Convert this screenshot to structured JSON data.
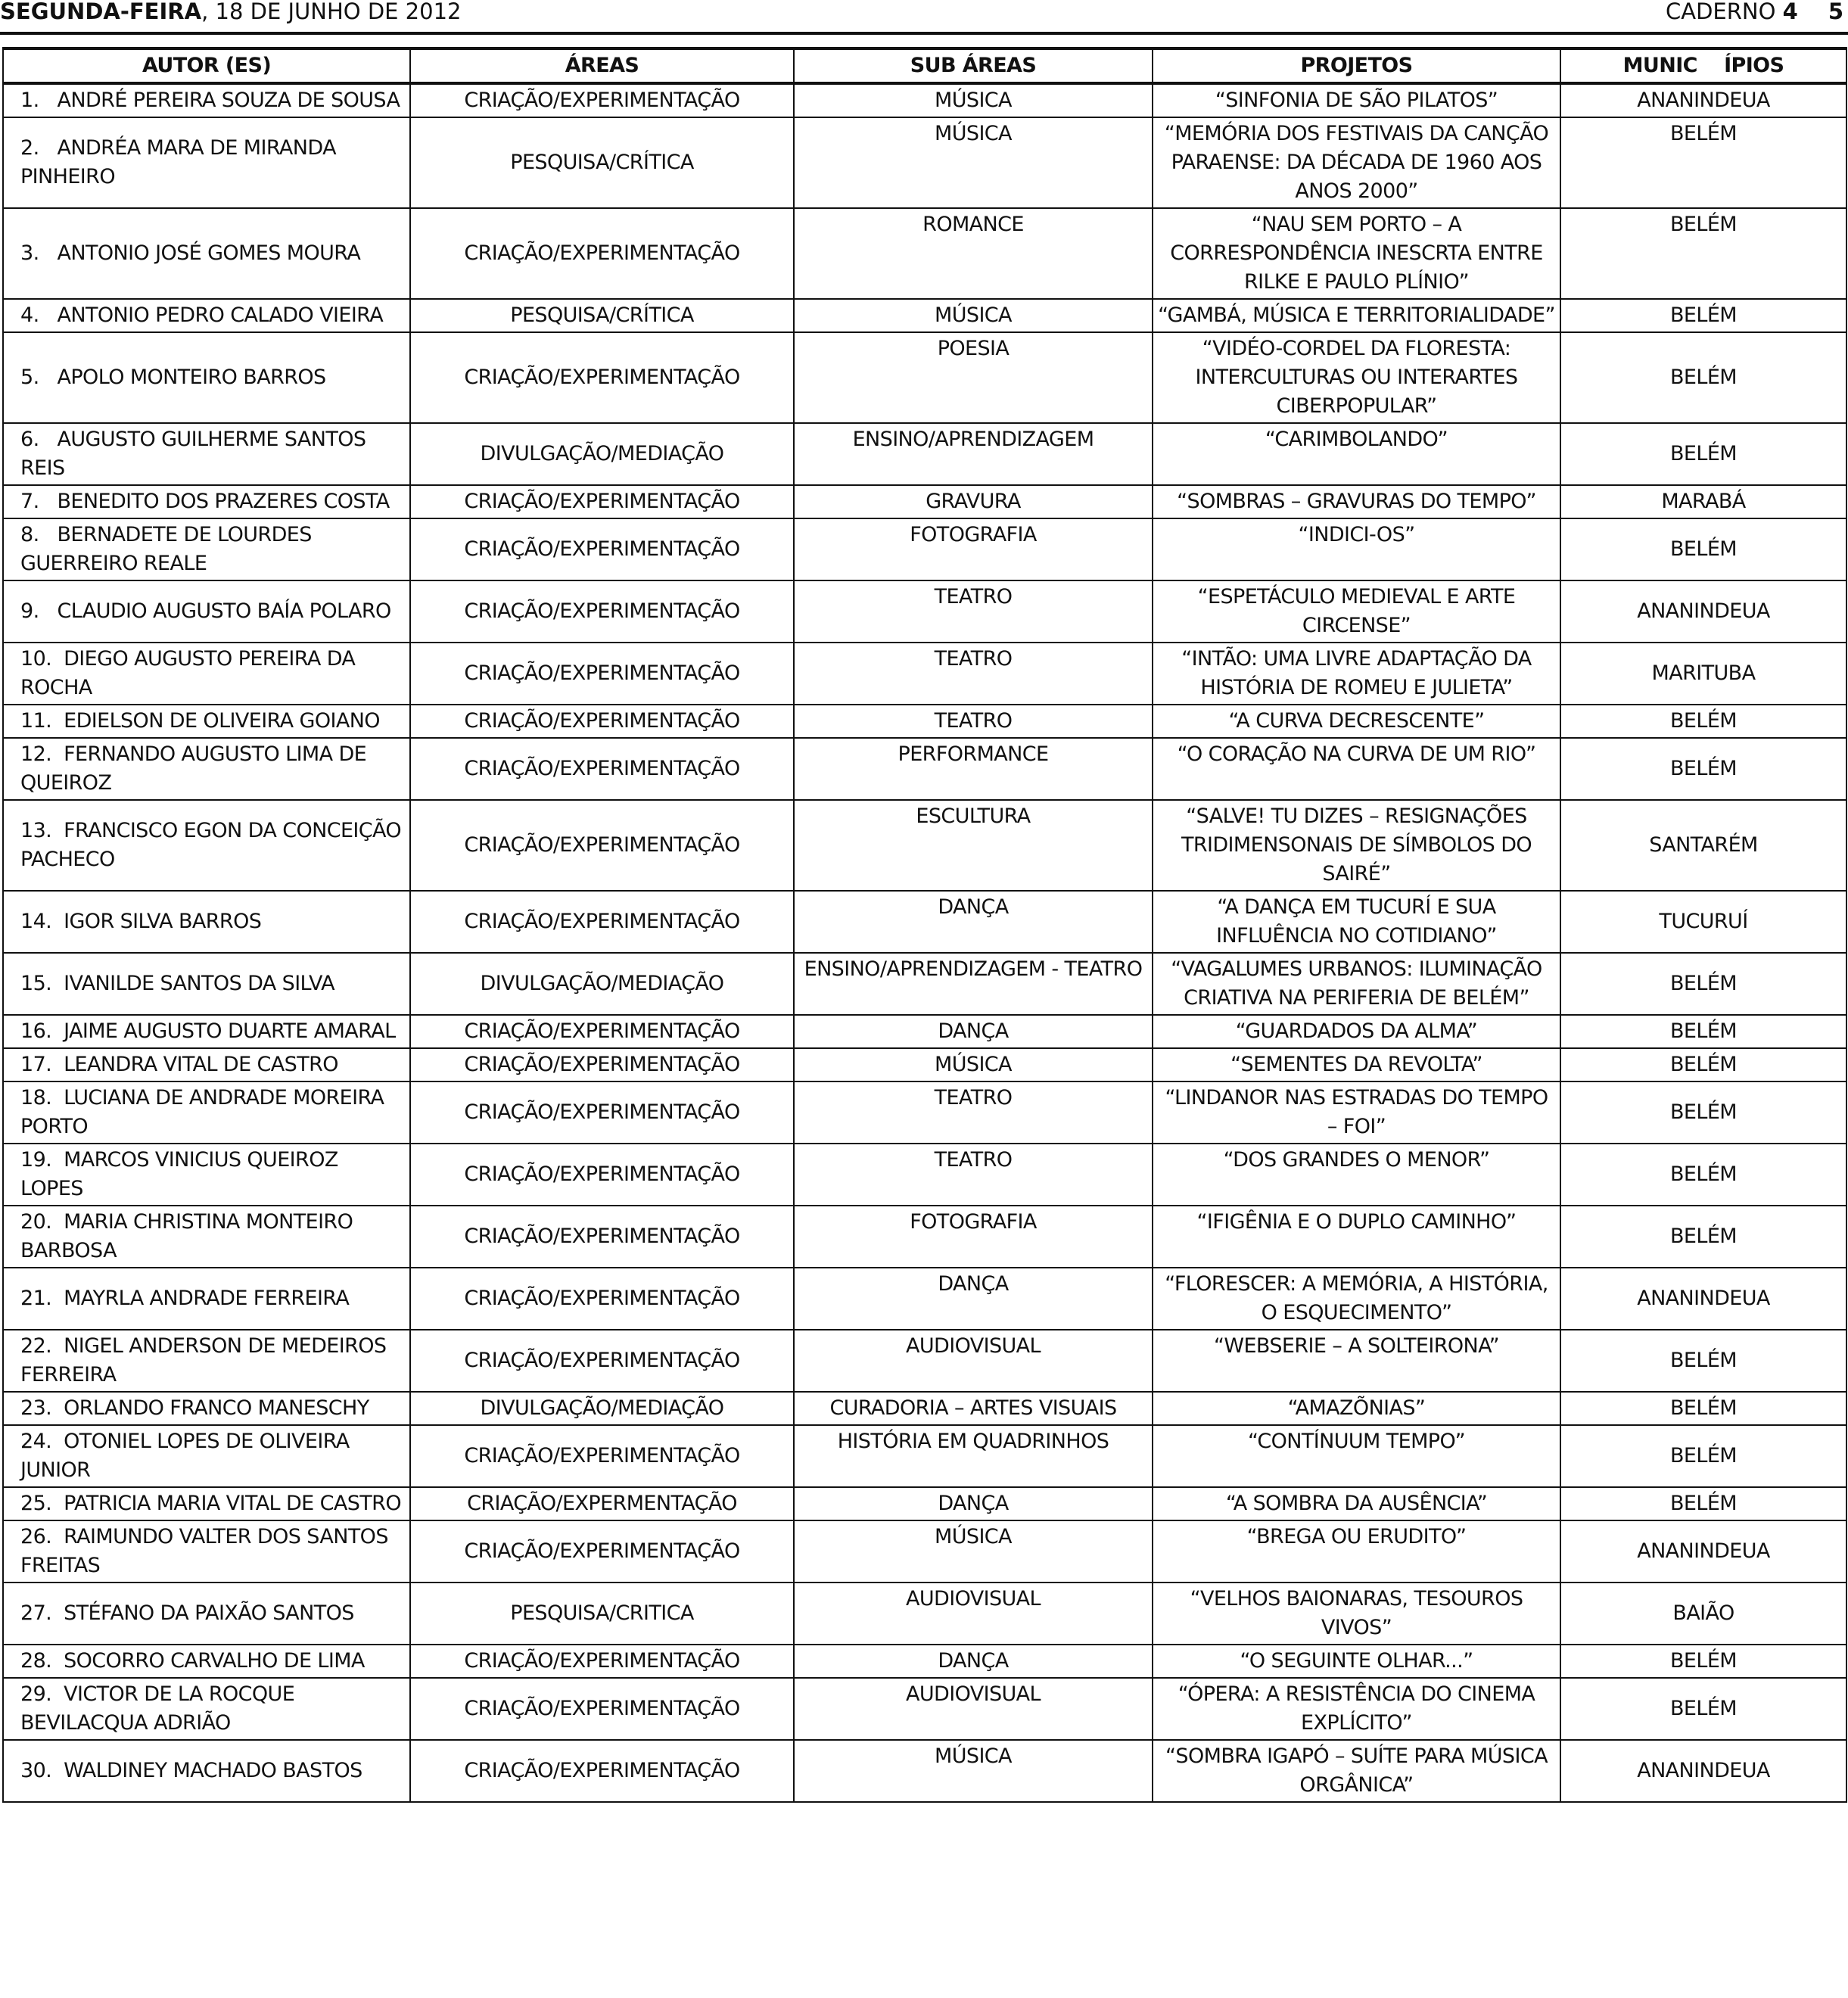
{
  "header": {
    "weekday": "SEGUNDA-FEIRA",
    "date": ", 18 DE JUNHO DE 2012",
    "section_label": "CADERNO",
    "section_number": "4",
    "page_number": "5"
  },
  "table": {
    "columns": [
      "AUTOR (ES)",
      "ÁREAS",
      "SUB ÁREAS",
      "PROJETOS",
      "MUNIC    ÍPIOS"
    ],
    "rows": [
      {
        "author": "1.   ANDRÉ PEREIRA SOUZA DE SOUSA",
        "area": "CRIAÇÃO/EXPERIMENTAÇÃO",
        "sub": "MÚSICA",
        "project": "“SINFONIA DE SÃO PILATOS”",
        "city": "ANANINDEUA"
      },
      {
        "author": "2.   ANDRÉA MARA DE MIRANDA PINHEIRO",
        "area": "PESQUISA/CRÍTICA",
        "sub": "MÚSICA",
        "project": "“MEMÓRIA DOS FESTIVAIS DA CANÇÃO PARAENSE: DA DÉCADA DE 1960 AOS ANOS 2000”",
        "city": "BELÉM"
      },
      {
        "author": "3.   ANTONIO JOSÉ GOMES MOURA",
        "area": "CRIAÇÃO/EXPERIMENTAÇÃO",
        "sub": "ROMANCE",
        "project": "“NAU SEM PORTO – A CORRESPONDÊNCIA INESCRTA ENTRE RILKE E PAULO PLÍNIO”",
        "city": "BELÉM"
      },
      {
        "author": "4.   ANTONIO PEDRO CALADO VIEIRA",
        "area": "PESQUISA/CRÍTICA",
        "sub": "MÚSICA",
        "project": "“GAMBÁ, MÚSICA E TERRITORIALIDADE”",
        "city": "BELÉM"
      },
      {
        "author": "5.   APOLO MONTEIRO BARROS",
        "area": "CRIAÇÃO/EXPERIMENTAÇÃO",
        "sub": "POESIA",
        "project": "“VIDÉO-CORDEL DA FLORESTA: INTERCULTURAS OU INTERARTES CIBERPOPULAR”",
        "city": "BELÉM"
      },
      {
        "author": "6.   AUGUSTO GUILHERME SANTOS REIS",
        "area": "DIVULGAÇÃO/MEDIAÇÃO",
        "sub": "ENSINO/APRENDIZAGEM",
        "project": "“CARIMBOLANDO”",
        "city": "BELÉM"
      },
      {
        "author": "7.   BENEDITO DOS PRAZERES COSTA",
        "area": "CRIAÇÃO/EXPERIMENTAÇÃO",
        "sub": "GRAVURA",
        "project": "“SOMBRAS – GRAVURAS DO TEMPO”",
        "city": "MARABÁ"
      },
      {
        "author": "8.   BERNADETE DE LOURDES GUERREIRO REALE",
        "area": "CRIAÇÃO/EXPERIMENTAÇÃO",
        "sub": "FOTOGRAFIA",
        "project": "“INDICI-OS”",
        "city": "BELÉM"
      },
      {
        "author": "9.   CLAUDIO AUGUSTO BAÍA POLARO",
        "area": "CRIAÇÃO/EXPERIMENTAÇÃO",
        "sub": "TEATRO",
        "project": "“ESPETÁCULO MEDIEVAL E ARTE CIRCENSE”",
        "city": "ANANINDEUA"
      },
      {
        "author": "10.  DIEGO AUGUSTO PEREIRA DA ROCHA",
        "area": "CRIAÇÃO/EXPERIMENTAÇÃO",
        "sub": "TEATRO",
        "project": "“INTÃO: UMA LIVRE ADAPTAÇÃO DA HISTÓRIA DE ROMEU E JULIETA”",
        "city": "MARITUBA"
      },
      {
        "author": "11.  EDIELSON DE OLIVEIRA GOIANO",
        "area": "CRIAÇÃO/EXPERIMENTAÇÃO",
        "sub": "TEATRO",
        "project": "“A CURVA DECRESCENTE”",
        "city": "BELÉM"
      },
      {
        "author": "12.  FERNANDO AUGUSTO LIMA DE QUEIROZ",
        "area": "CRIAÇÃO/EXPERIMENTAÇÃO",
        "sub": "PERFORMANCE",
        "project": "“O CORAÇÃO NA CURVA DE UM RIO”",
        "city": "BELÉM"
      },
      {
        "author": "13.  FRANCISCO EGON DA CONCEIÇÃO PACHECO",
        "area": "CRIAÇÃO/EXPERIMENTAÇÃO",
        "sub": "ESCULTURA",
        "project": "“SALVE! TU DIZES – RESIGNAÇÕES TRIDIMENSONAIS DE SÍMBOLOS DO SAIRÉ”",
        "city": "SANTARÉM"
      },
      {
        "author": "14.  IGOR SILVA BARROS",
        "area": "CRIAÇÃO/EXPERIMENTAÇÃO",
        "sub": "DANÇA",
        "project": "“A DANÇA EM TUCURÍ E SUA INFLUÊNCIA NO COTIDIANO”",
        "city": "TUCURUÍ"
      },
      {
        "author": "15.  IVANILDE SANTOS DA SILVA",
        "area": "DIVULGAÇÃO/MEDIAÇÃO",
        "sub": "ENSINO/APRENDIZAGEM - TEATRO",
        "project": "“VAGALUMES URBANOS: ILUMINAÇÃO CRIATIVA NA PERIFERIA DE BELÉM”",
        "city": "BELÉM"
      },
      {
        "author": "16.  JAIME AUGUSTO DUARTE AMARAL",
        "area": "CRIAÇÃO/EXPERIMENTAÇÃO",
        "sub": "DANÇA",
        "project": "“GUARDADOS DA ALMA”",
        "city": "BELÉM"
      },
      {
        "author": "17.  LEANDRA VITAL DE CASTRO",
        "area": "CRIAÇÃO/EXPERIMENTAÇÃO",
        "sub": "MÚSICA",
        "project": "“SEMENTES DA REVOLTA”",
        "city": "BELÉM"
      },
      {
        "author": "18.  LUCIANA DE ANDRADE MOREIRA PORTO",
        "area": "CRIAÇÃO/EXPERIMENTAÇÃO",
        "sub": "TEATRO",
        "project": "“LINDANOR NAS ESTRADAS DO TEMPO – FOI”",
        "city": "BELÉM"
      },
      {
        "author": "19.  MARCOS VINICIUS QUEIROZ LOPES",
        "area": "CRIAÇÃO/EXPERIMENTAÇÃO",
        "sub": "TEATRO",
        "project": "“DOS GRANDES O MENOR”",
        "city": "BELÉM"
      },
      {
        "author": "20.  MARIA CHRISTINA MONTEIRO BARBOSA",
        "area": "CRIAÇÃO/EXPERIMENTAÇÃO",
        "sub": "FOTOGRAFIA",
        "project": "“IFIGÊNIA E O DUPLO CAMINHO”",
        "city": "BELÉM"
      },
      {
        "author": "21.  MAYRLA ANDRADE FERREIRA",
        "area": "CRIAÇÃO/EXPERIMENTAÇÃO",
        "sub": "DANÇA",
        "project": "“FLORESCER: A MEMÓRIA, A HISTÓRIA, O ESQUECIMENTO”",
        "city": "ANANINDEUA"
      },
      {
        "author": "22.  NIGEL ANDERSON DE MEDEIROS FERREIRA",
        "area": "CRIAÇÃO/EXPERIMENTAÇÃO",
        "sub": "AUDIOVISUAL",
        "project": "“WEBSERIE – A SOLTEIRONA”",
        "city": "BELÉM"
      },
      {
        "author": "23.  ORLANDO FRANCO MANESCHY",
        "area": "DIVULGAÇÃO/MEDIAÇÃO",
        "sub": "CURADORIA – ARTES VISUAIS",
        "project": "“AMAZÕNIAS”",
        "city": "BELÉM"
      },
      {
        "author": "24.  OTONIEL LOPES DE OLIVEIRA JUNIOR",
        "area": "CRIAÇÃO/EXPERIMENTAÇÃO",
        "sub": "HISTÓRIA EM QUADRINHOS",
        "project": "“CONTÍNUUM TEMPO”",
        "city": "BELÉM"
      },
      {
        "author": "25.  PATRICIA MARIA VITAL DE CASTRO",
        "area": "CRIAÇÃO/EXPERMENTAÇÃO",
        "sub": "DANÇA",
        "project": "“A SOMBRA DA AUSÊNCIA”",
        "city": "BELÉM"
      },
      {
        "author": "26.  RAIMUNDO VALTER DOS SANTOS FREITAS",
        "area": "CRIAÇÃO/EXPERIMENTAÇÃO",
        "sub": "MÚSICA",
        "project": "“BREGA OU ERUDITO”",
        "city": "ANANINDEUA"
      },
      {
        "author": "27.  STÉFANO DA PAIXÃO SANTOS",
        "area": "PESQUISA/CRITICA",
        "sub": "AUDIOVISUAL",
        "project": "“VELHOS BAIONARAS, TESOUROS VIVOS”",
        "city": "BAIÃO"
      },
      {
        "author": "28.  SOCORRO CARVALHO DE LIMA",
        "area": "CRIAÇÃO/EXPERIMENTAÇÃO",
        "sub": "DANÇA",
        "project": "“O SEGUINTE OLHAR...”",
        "city": "BELÉM"
      },
      {
        "author": "29.  VICTOR DE LA ROCQUE BEVILACQUA ADRIÃO",
        "area": "CRIAÇÃO/EXPERIMENTAÇÃO",
        "sub": "AUDIOVISUAL",
        "project": "“ÓPERA: A RESISTÊNCIA DO CINEMA EXPLÍCITO”",
        "city": "BELÉM"
      },
      {
        "author": "30.  WALDINEY MACHADO BASTOS",
        "area": "CRIAÇÃO/EXPERIMENTAÇÃO",
        "sub": "MÚSICA",
        "project": "“SOMBRA IGAPÓ – SUÍTE PARA MÚSICA ORGÂNICA”",
        "city": "ANANINDEUA"
      }
    ]
  }
}
